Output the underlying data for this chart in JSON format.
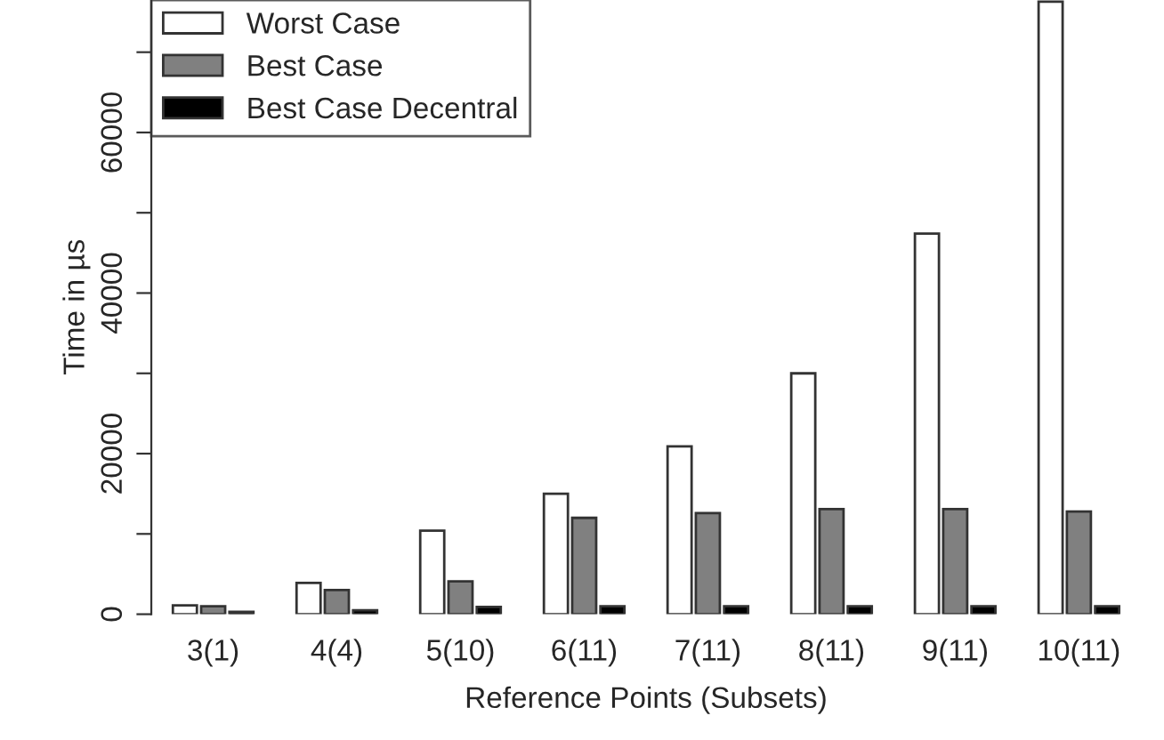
{
  "chart_data": {
    "type": "bar",
    "xlabel": "Reference Points (Subsets)",
    "ylabel": "Time in µs",
    "categories": [
      "3(1)",
      "4(4)",
      "5(10)",
      "6(11)",
      "7(11)",
      "8(11)",
      "9(11)",
      "10(11)"
    ],
    "series": [
      {
        "name": "Worst Case",
        "color": "#ffffff",
        "values": [
          1100,
          3900,
          10400,
          15000,
          20900,
          30000,
          47400,
          76300
        ]
      },
      {
        "name": "Best Case",
        "color": "#808080",
        "values": [
          1000,
          3000,
          4100,
          12000,
          12600,
          13100,
          13100,
          12800
        ]
      },
      {
        "name": "Best Case Decentral",
        "color": "#000000",
        "values": [
          300,
          500,
          900,
          1000,
          1000,
          1000,
          1000,
          1000
        ]
      }
    ],
    "ylim": [
      0,
      76500
    ],
    "yticks": [
      0,
      {
        "value": 10000,
        "label": null
      },
      20000,
      {
        "value": 30000,
        "label": null
      },
      40000,
      {
        "value": 50000,
        "label": null
      },
      60000,
      {
        "value": 70000,
        "label": null
      }
    ],
    "legend": "top left",
    "grid": false
  }
}
